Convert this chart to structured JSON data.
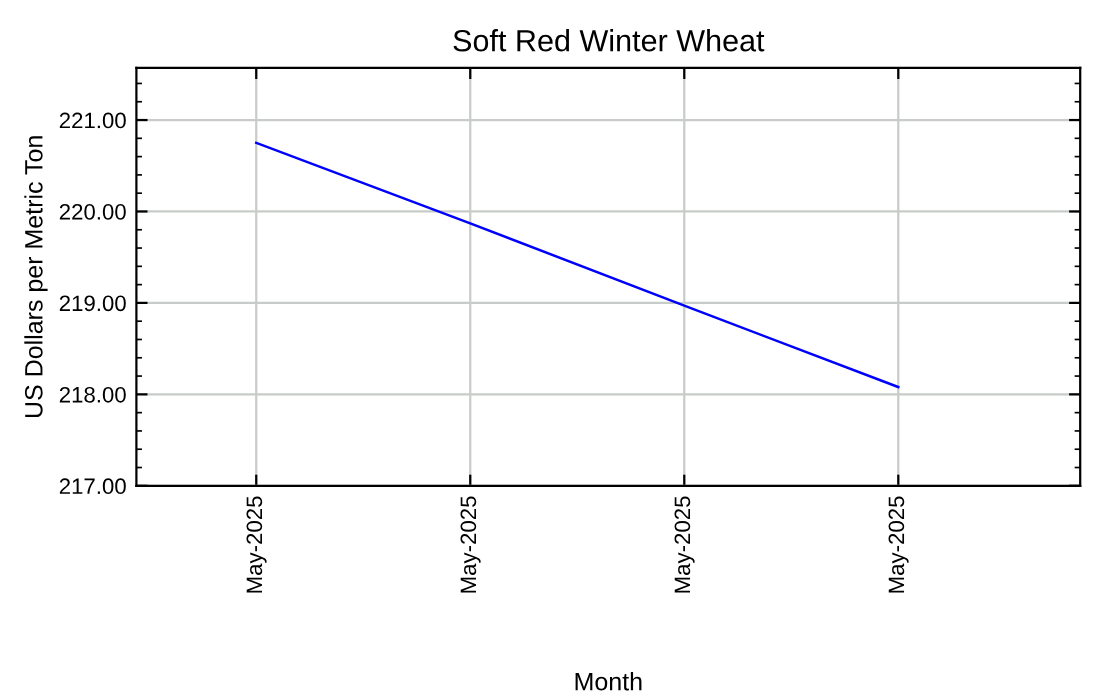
{
  "chart_data": {
    "type": "line",
    "title": "Soft Red Winter Wheat",
    "xlabel": "Month",
    "ylabel": "US Dollars per Metric Ton",
    "categories": [
      "May-2025",
      "May-2025",
      "May-2025",
      "May-2025"
    ],
    "series": [
      {
        "color": "#0000ff",
        "values": [
          220.75,
          219.87,
          218.97,
          218.08
        ]
      }
    ],
    "ylim": [
      217,
      221.57
    ],
    "yticks": [
      {
        "value": 217,
        "label": "217.00"
      },
      {
        "value": 218,
        "label": "218.00"
      },
      {
        "value": 219,
        "label": "219.00"
      },
      {
        "value": 220,
        "label": "220.00"
      },
      {
        "value": 221,
        "label": "221.00"
      }
    ],
    "grid": true,
    "marker": "none",
    "line_style": "solid"
  }
}
